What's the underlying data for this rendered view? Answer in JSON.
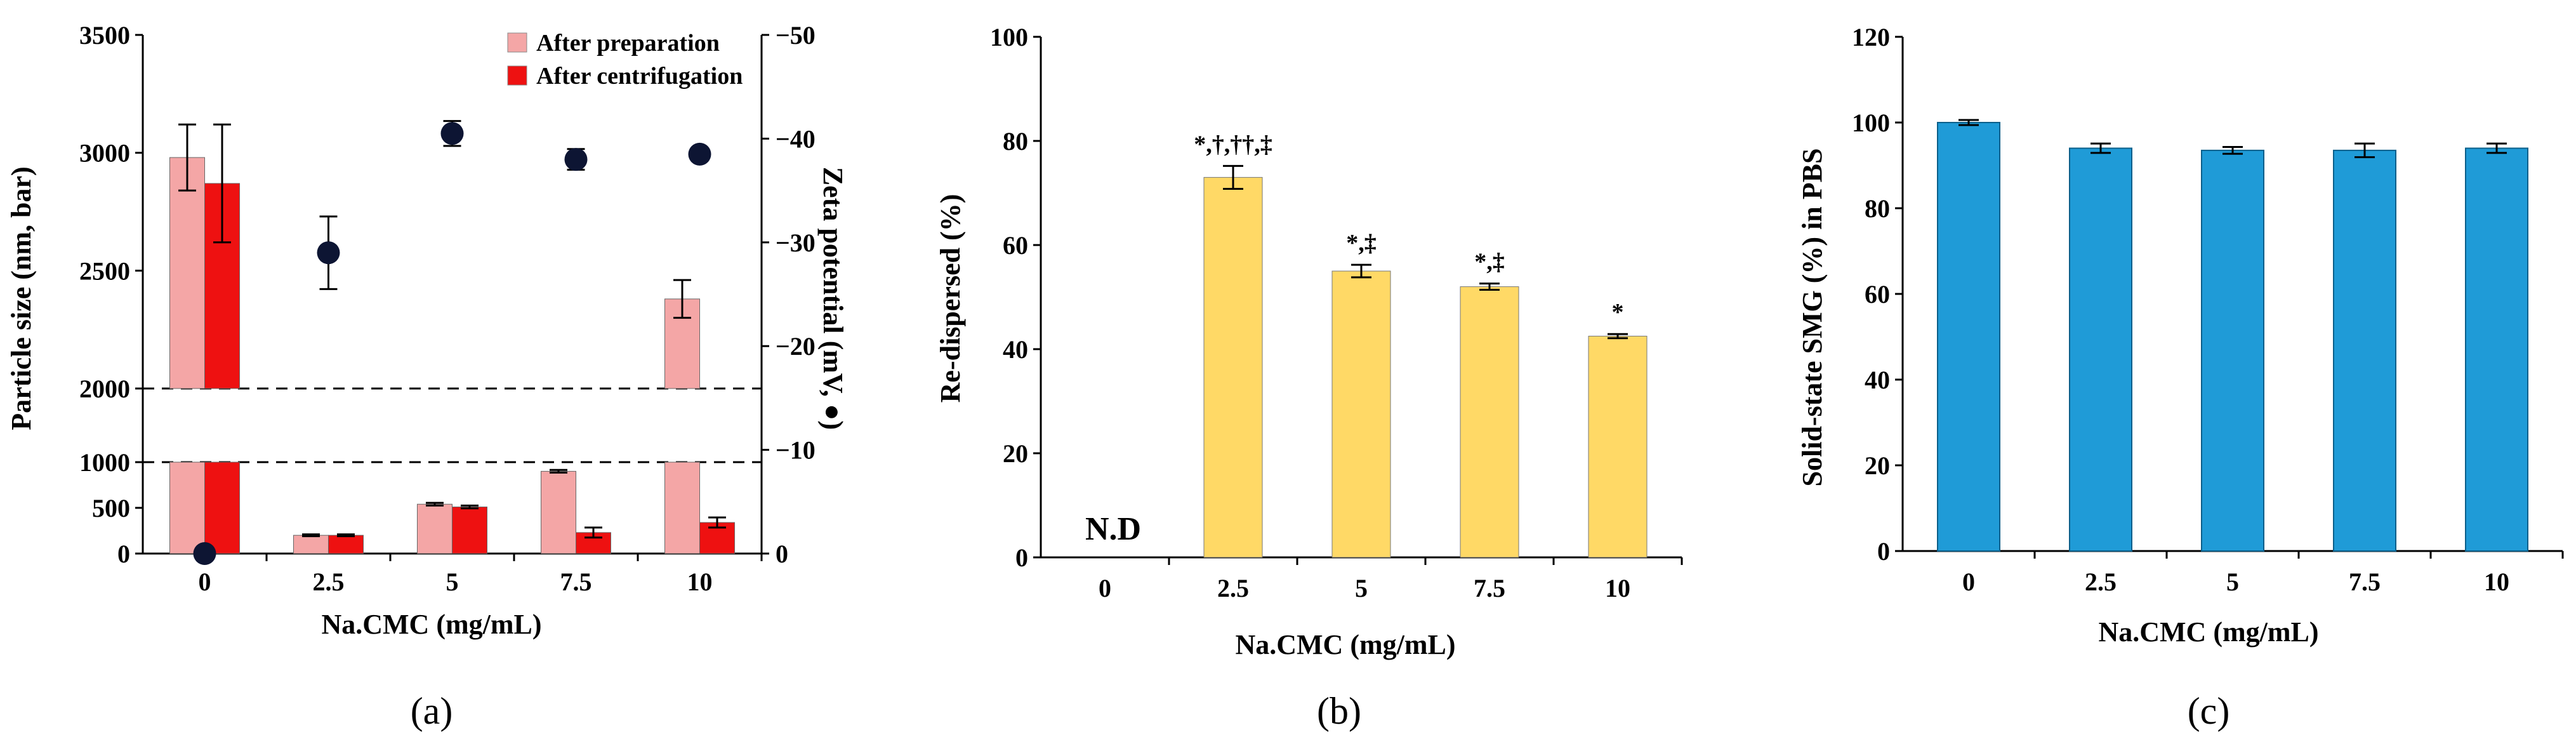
{
  "colors": {
    "after_preparation": "#F4A6A6",
    "after_centrifugation": "#EE1111",
    "redispersed": "#FFD966",
    "solid_state": "#1F9BD7",
    "zeta_marker": "#0D1533",
    "axis": "#000000"
  },
  "chart_data": [
    {
      "panel_label": "(a)",
      "type": "bar",
      "categories": [
        "0",
        "2.5",
        "5",
        "7.5",
        "10"
      ],
      "xlabel": "Na.CMC (mg/mL)",
      "ylabel": "Particle size (nm, bar)",
      "y2label": "Zeta potential (mV, ●)",
      "axis_break": {
        "lower_range": [
          0,
          1000
        ],
        "upper_range": [
          2000,
          3500
        ]
      },
      "ylim": [
        0,
        3500
      ],
      "y_ticks": [
        "0",
        "500",
        "1000",
        "2000",
        "2500",
        "3000",
        "3500"
      ],
      "y2_ticks": [
        "0",
        "−10",
        "−20",
        "−30",
        "−40",
        "−50"
      ],
      "legend": [
        "After preparation",
        "After centrifugation"
      ],
      "legend_position": "top-right",
      "series": [
        {
          "name": "After preparation",
          "values": [
            2980,
            200,
            540,
            900,
            2380
          ],
          "errors": [
            140,
            10,
            15,
            15,
            80
          ]
        },
        {
          "name": "After centrifugation",
          "values": [
            2870,
            200,
            510,
            230,
            340
          ],
          "errors": [
            250,
            10,
            15,
            55,
            55
          ]
        }
      ],
      "zeta": {
        "values": [
          0,
          -29,
          -40.5,
          -38,
          -38.5
        ],
        "errors": [
          0,
          3.5,
          1.2,
          1,
          0.3
        ],
        "ylim": [
          0,
          -50
        ]
      }
    },
    {
      "panel_label": "(b)",
      "type": "bar",
      "categories": [
        "0",
        "2.5",
        "5",
        "7.5",
        "10"
      ],
      "xlabel": "Na.CMC (mg/mL)",
      "ylabel": "Re-dispersed (%)",
      "ylim": [
        0,
        100
      ],
      "y_ticks": [
        "0",
        "20",
        "40",
        "60",
        "80",
        "100"
      ],
      "values": [
        0,
        73,
        55,
        52,
        42.5
      ],
      "errors": [
        0,
        2.2,
        1.2,
        0.6,
        0.4
      ],
      "annotations": [
        "",
        "*,†,††,‡",
        "*,‡",
        "*,‡",
        "*"
      ],
      "nd_label": "N.D"
    },
    {
      "panel_label": "(c)",
      "type": "bar",
      "categories": [
        "0",
        "2.5",
        "5",
        "7.5",
        "10"
      ],
      "xlabel": "Na.CMC (mg/mL)",
      "ylabel": "Solid-state SMG (%) in PBS",
      "ylim": [
        0,
        120
      ],
      "y_ticks": [
        "0",
        "20",
        "40",
        "60",
        "80",
        "100",
        "120"
      ],
      "values": [
        100,
        94,
        93.5,
        93.5,
        94
      ],
      "errors": [
        0.3,
        0.8,
        0.5,
        1.3,
        0.8
      ]
    }
  ]
}
